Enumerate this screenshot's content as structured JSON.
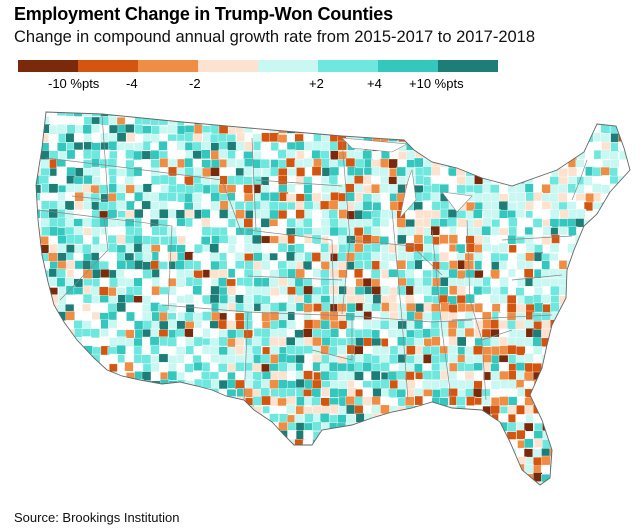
{
  "header": {
    "title": "Employment Change in Trump-Won Counties",
    "subtitle": "Change in compound annual growth rate from 2015-2017 to 2017-2018"
  },
  "legend": {
    "bins": [
      {
        "color": "#7a2a0a"
      },
      {
        "color": "#d4550f"
      },
      {
        "color": "#f08d45"
      },
      {
        "color": "#fde3cf"
      },
      {
        "color": "#c9f8f3"
      },
      {
        "color": "#6ee8de"
      },
      {
        "color": "#33c7bd"
      },
      {
        "color": "#1d7d77"
      }
    ],
    "ticks": [
      "-10 %pts",
      "-4",
      "-2",
      "+2",
      "+4",
      "+10 %pts"
    ]
  },
  "source": "Source: Brookings Institution",
  "colors": {
    "not_trump": "#ffffff",
    "border": "#777777",
    "county_line": "#ffffff"
  }
}
